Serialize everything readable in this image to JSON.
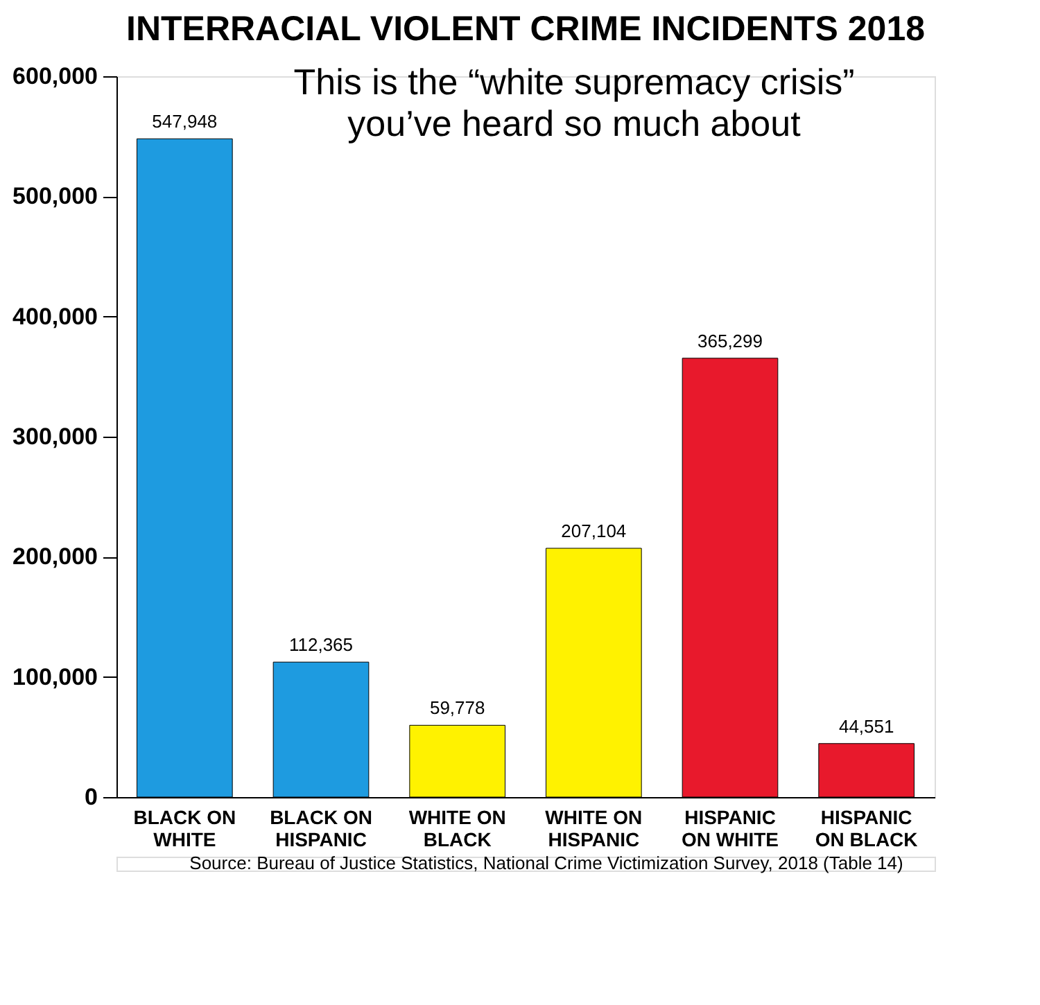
{
  "chart_data": {
    "type": "bar",
    "title": "INTERRACIAL VIOLENT CRIME INCIDENTS 2018",
    "categories": [
      "BLACK ON WHITE",
      "BLACK ON HISPANIC",
      "WHITE ON BLACK",
      "WHITE ON HISPANIC",
      "HISPANIC ON WHITE",
      "HISPANIC ON BLACK"
    ],
    "values": [
      547948,
      112365,
      59778,
      207104,
      365299,
      44551
    ],
    "colors": [
      "#1e9be0",
      "#1e9be0",
      "#fff200",
      "#fff200",
      "#e8192c",
      "#e8192c"
    ],
    "value_labels": [
      "547,948",
      "112,365",
      "59,778",
      "207,104",
      "365,299",
      "44,551"
    ],
    "ylim": [
      0,
      600000
    ],
    "yticks": [
      0,
      {
        "value": 100000,
        "label": "100,000"
      },
      {
        "value": 200000,
        "label": "200,000"
      },
      {
        "value": 300000,
        "label": "300,000"
      },
      {
        "value": 400000,
        "label": "400,000"
      },
      {
        "value": 500000,
        "label": "500,000"
      },
      {
        "value": 600000,
        "label": "600,000"
      }
    ],
    "grid": false,
    "annotations": [
      "This is the “white supremacy crisis” you’ve heard so much about",
      "Source: Bureau of Justice Statistics, National Crime Victimization Survey, 2018 (Table 14)"
    ]
  }
}
